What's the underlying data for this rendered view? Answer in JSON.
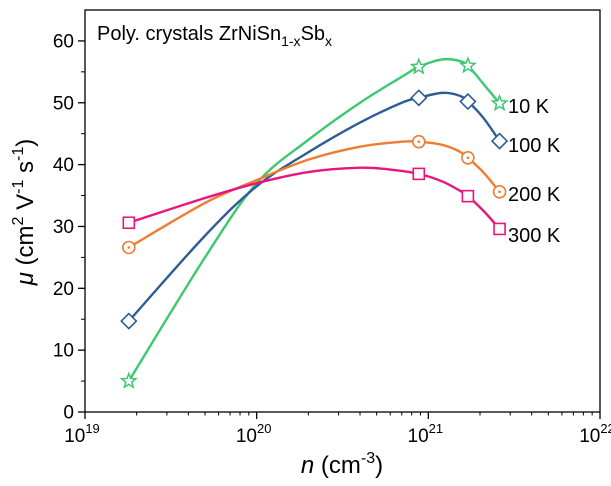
{
  "chart_data": {
    "type": "line",
    "annotation": {
      "prefix": "Poly. crystals ZrNiSn",
      "sub1": "1-x",
      "mid": "Sb",
      "sub2": "x"
    },
    "xlabel": {
      "var": "n",
      "unit_pre": " (cm",
      "unit_exp": "-3",
      "unit_post": ")"
    },
    "ylabel": {
      "var": "μ",
      "unit_pre": " (cm",
      "exp1": "2",
      "mid": " V",
      "exp2": "-1",
      "mid2": " s",
      "exp3": "-1",
      "unit_post": ")"
    },
    "x_scale": "log",
    "xlim": [
      1e+19,
      1e+22
    ],
    "ylim": [
      0,
      65
    ],
    "x_ticks": [
      {
        "value": 1e+19,
        "base": "10",
        "exp": "19"
      },
      {
        "value": 1e+20,
        "base": "10",
        "exp": "20"
      },
      {
        "value": 1e+21,
        "base": "10",
        "exp": "21"
      },
      {
        "value": 1e+22,
        "base": "10",
        "exp": "22"
      }
    ],
    "y_ticks": [
      "0",
      "10",
      "20",
      "30",
      "40",
      "50",
      "60"
    ],
    "grid": false,
    "series": [
      {
        "name": "10 K",
        "color": "#3cc870",
        "marker": "star",
        "points": [
          [
            1.8e+19,
            5.0
          ],
          [
            8.8e+20,
            55.8
          ],
          [
            1.7e+21,
            56.0
          ],
          [
            2.6e+21,
            49.9
          ]
        ],
        "curve": [
          [
            1.8e+19,
            5.0
          ],
          [
            5e+19,
            25.0
          ],
          [
            1e+20,
            37.0
          ],
          [
            2e+20,
            44.0
          ],
          [
            4e+20,
            50.0
          ],
          [
            7e+20,
            54.2
          ],
          [
            8.8e+20,
            55.8
          ],
          [
            1.2e+21,
            57.0
          ],
          [
            1.5e+21,
            56.8
          ],
          [
            1.7e+21,
            56.0
          ],
          [
            2.1e+21,
            53.0
          ],
          [
            2.6e+21,
            49.9
          ]
        ]
      },
      {
        "name": "100 K",
        "color": "#2e5d96",
        "marker": "diamond",
        "points": [
          [
            1.8e+19,
            14.7
          ],
          [
            8.8e+20,
            50.8
          ],
          [
            1.7e+21,
            50.2
          ],
          [
            2.6e+21,
            43.8
          ]
        ],
        "curve": [
          [
            1.8e+19,
            14.7
          ],
          [
            5e+19,
            28.5
          ],
          [
            1e+20,
            36.5
          ],
          [
            2e+20,
            42.0
          ],
          [
            4e+20,
            46.8
          ],
          [
            7e+20,
            50.0
          ],
          [
            8.8e+20,
            50.8
          ],
          [
            1.2e+21,
            51.6
          ],
          [
            1.5e+21,
            51.2
          ],
          [
            1.7e+21,
            50.2
          ],
          [
            2.1e+21,
            47.5
          ],
          [
            2.6e+21,
            43.8
          ]
        ]
      },
      {
        "name": "200 K",
        "color": "#f07c32",
        "marker": "circle-dot",
        "points": [
          [
            1.8e+19,
            26.6
          ],
          [
            8.8e+20,
            43.7
          ],
          [
            1.7e+21,
            41.1
          ],
          [
            2.6e+21,
            35.6
          ]
        ],
        "curve": [
          [
            1.8e+19,
            26.6
          ],
          [
            5e+19,
            33.8
          ],
          [
            1e+20,
            37.5
          ],
          [
            2e+20,
            40.8
          ],
          [
            4e+20,
            42.9
          ],
          [
            7e+20,
            43.7
          ],
          [
            8.8e+20,
            43.7
          ],
          [
            1.2e+21,
            43.2
          ],
          [
            1.5e+21,
            42.2
          ],
          [
            1.7e+21,
            41.1
          ],
          [
            2.1e+21,
            38.7
          ],
          [
            2.6e+21,
            35.6
          ]
        ]
      },
      {
        "name": "300 K",
        "color": "#e8157e",
        "marker": "square",
        "points": [
          [
            1.8e+19,
            30.6
          ],
          [
            8.8e+20,
            38.5
          ],
          [
            1.7e+21,
            34.9
          ],
          [
            2.6e+21,
            29.6
          ]
        ],
        "curve": [
          [
            1.8e+19,
            30.6
          ],
          [
            5e+19,
            34.6
          ],
          [
            1e+20,
            37.0
          ],
          [
            2e+20,
            38.8
          ],
          [
            4e+20,
            39.5
          ],
          [
            6e+20,
            39.2
          ],
          [
            8.8e+20,
            38.5
          ],
          [
            1.2e+21,
            37.3
          ],
          [
            1.5e+21,
            35.9
          ],
          [
            1.7e+21,
            34.9
          ],
          [
            2.1e+21,
            32.5
          ],
          [
            2.6e+21,
            29.6
          ]
        ]
      }
    ]
  }
}
